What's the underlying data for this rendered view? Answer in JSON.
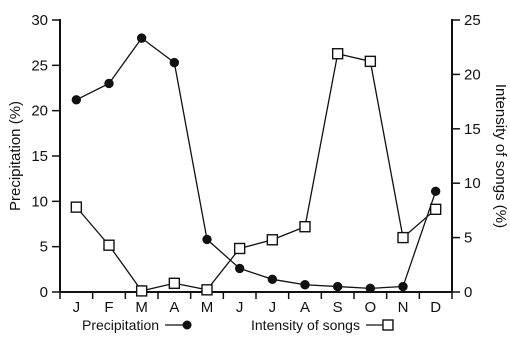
{
  "chart_data": {
    "type": "line",
    "categories": [
      "J",
      "F",
      "M",
      "A",
      "M",
      "J",
      "J",
      "A",
      "S",
      "O",
      "N",
      "D"
    ],
    "series": [
      {
        "name": "Precipitation",
        "axis": "left",
        "marker": "filled-circle",
        "values": [
          21.2,
          23.0,
          28.0,
          25.3,
          5.8,
          2.6,
          1.4,
          0.8,
          0.6,
          0.4,
          0.6,
          11.1
        ]
      },
      {
        "name": "Intensity of songs",
        "axis": "right",
        "marker": "open-square",
        "values": [
          7.8,
          4.3,
          0.1,
          0.8,
          0.2,
          4.0,
          4.8,
          6.0,
          21.9,
          21.2,
          5.0,
          7.6
        ]
      }
    ],
    "ylabel_left": "Precipitation (%)",
    "ylabel_right": "Intensity of songs (%)",
    "ylim_left": [
      0,
      30
    ],
    "ylim_right": [
      0,
      25
    ],
    "yticks_left": [
      0,
      5,
      10,
      15,
      20,
      25,
      30
    ],
    "yticks_right": [
      0,
      5,
      10,
      15,
      20,
      25
    ],
    "grid": false,
    "legend_position": "bottom",
    "legend": [
      {
        "label": "Precipitation",
        "marker": "filled-circle"
      },
      {
        "label": "Intensity of songs",
        "marker": "open-square"
      }
    ]
  }
}
